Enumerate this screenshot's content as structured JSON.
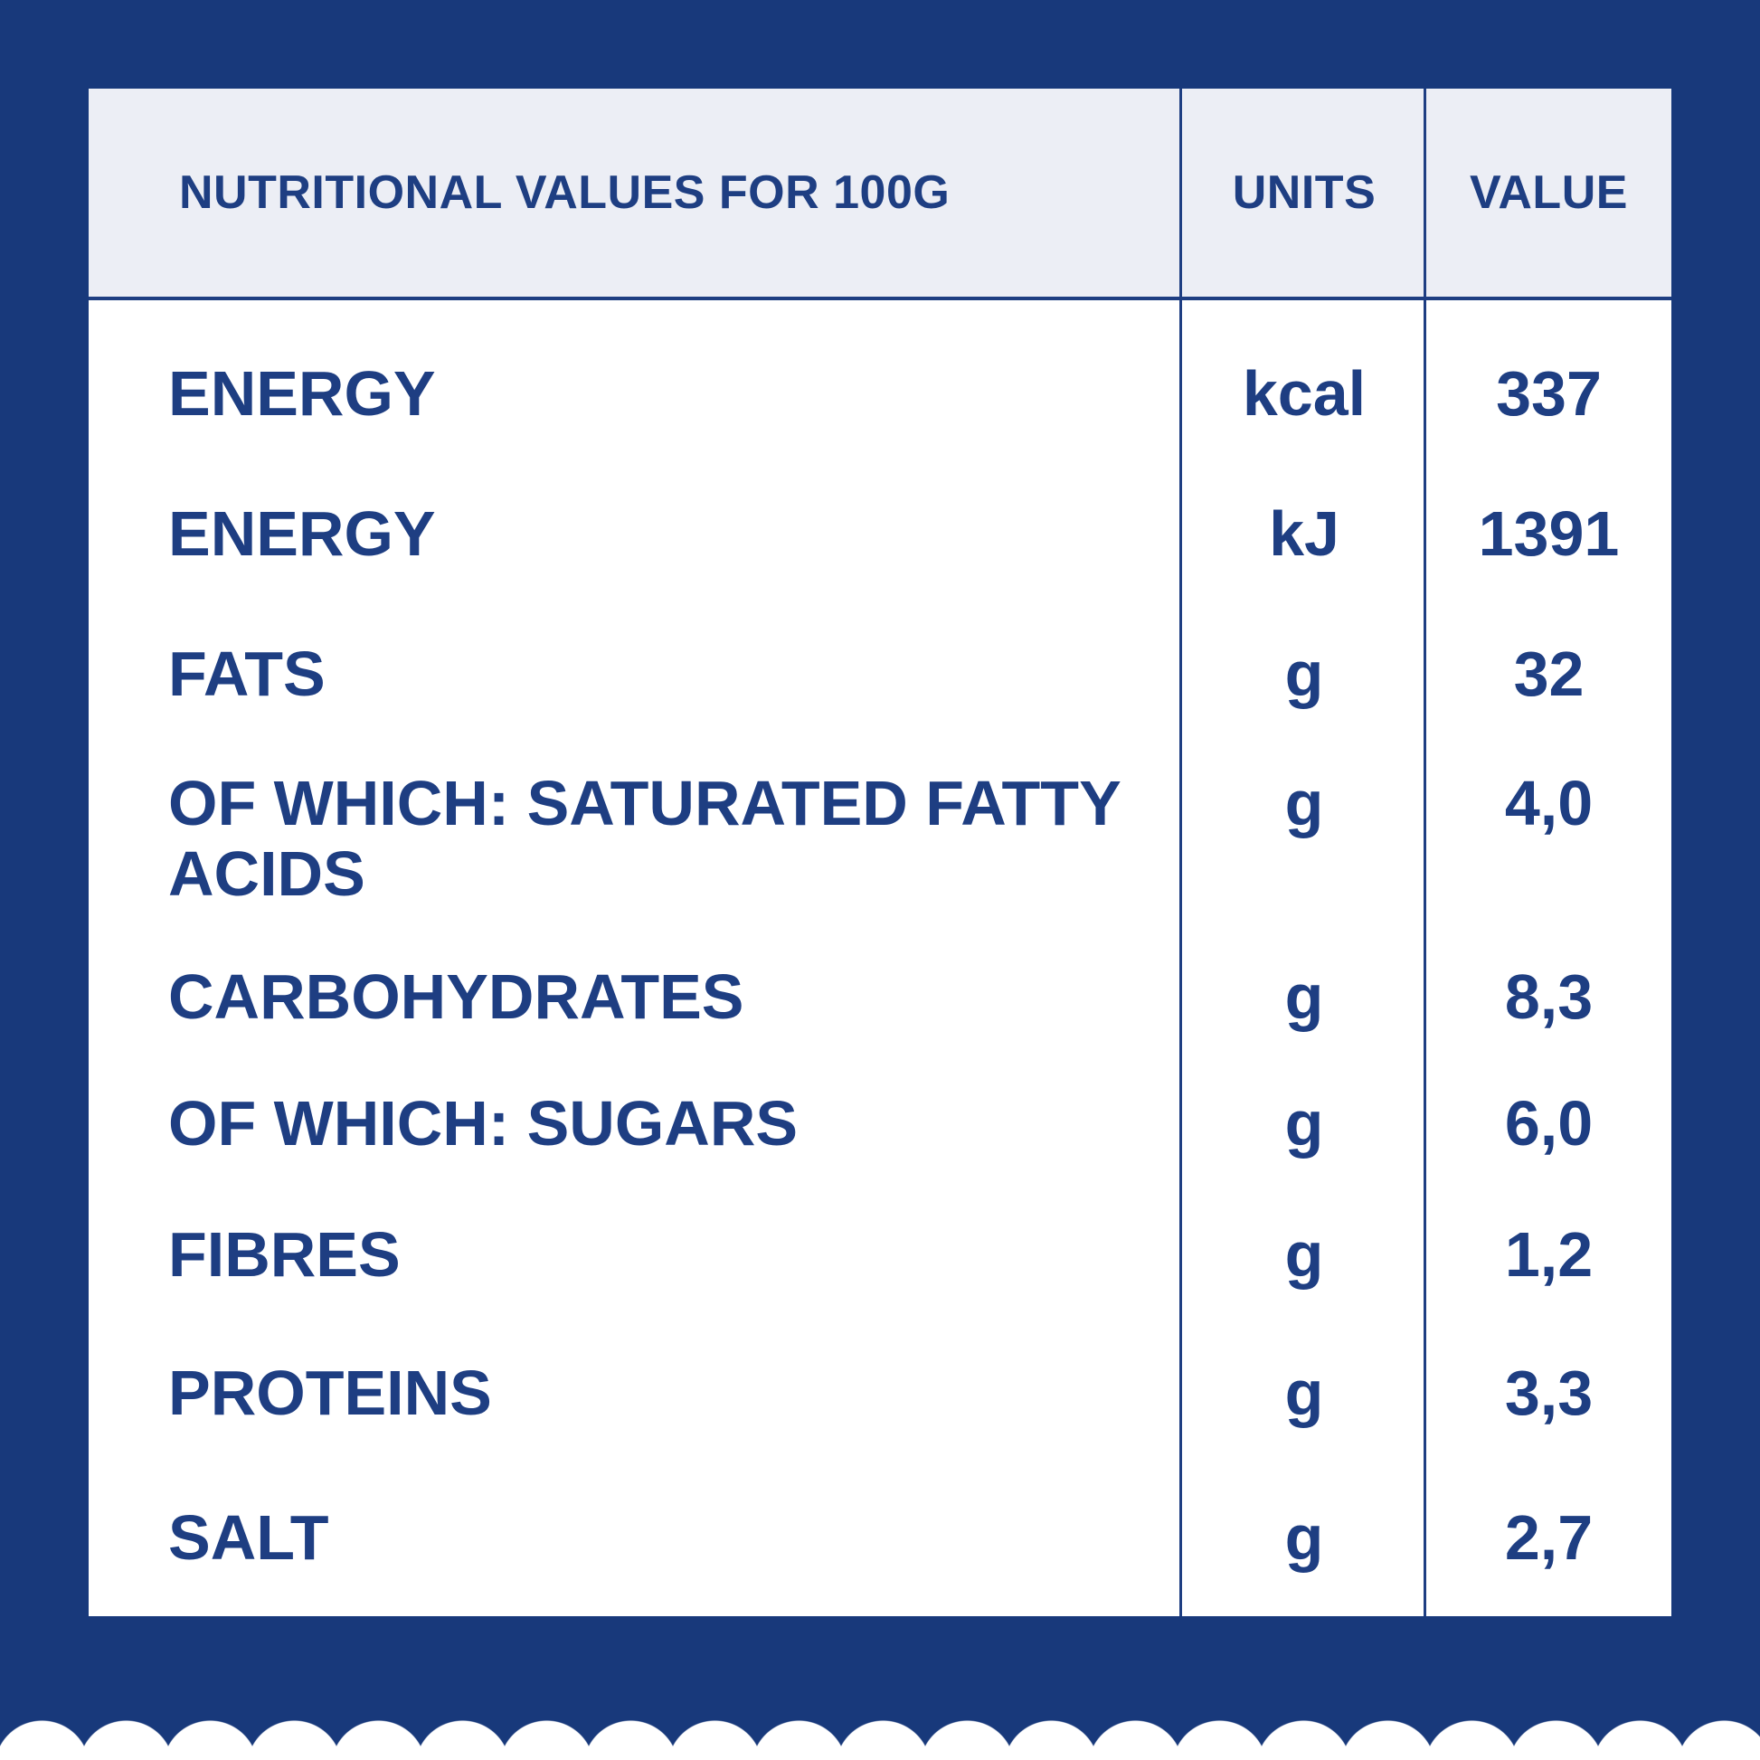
{
  "table": {
    "header": {
      "name": "NUTRITIONAL VALUES FOR 100G",
      "units": "UNITS",
      "value": "VALUE"
    },
    "rows": [
      {
        "name": "ENERGY",
        "units": "kcal",
        "value": "337"
      },
      {
        "name": "ENERGY",
        "units": "kJ",
        "value": "1391"
      },
      {
        "name": "FATS",
        "units": "g",
        "value": "32"
      },
      {
        "name": "OF WHICH: SATURATED FATTY ACIDS",
        "units": "g",
        "value": "4,0"
      },
      {
        "name": "CARBOHYDRATES",
        "units": "g",
        "value": "8,3"
      },
      {
        "name": "OF WHICH: SUGARS",
        "units": "g",
        "value": "6,0"
      },
      {
        "name": "FIBRES",
        "units": "g",
        "value": "1,2"
      },
      {
        "name": "PROTEINS",
        "units": "g",
        "value": "3,3"
      },
      {
        "name": "SALT",
        "units": "g",
        "value": "2,7"
      }
    ]
  },
  "colors": {
    "background_blue": "#18397B",
    "text_navy": "#1E3E82",
    "header_band": "#ECEEF5",
    "panel_white": "#FFFFFF"
  }
}
